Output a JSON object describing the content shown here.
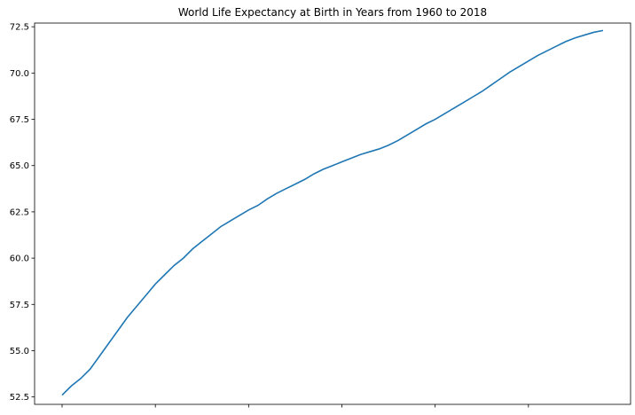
{
  "chart_data": {
    "type": "line",
    "title": "World Life Expectancy at Birth in Years from 1960 to 2018",
    "xlabel": "",
    "ylabel": "",
    "x_tick_labels_visible": false,
    "x_tick_count": 6,
    "yticks": [
      "52.5",
      "55.0",
      "57.5",
      "60.0",
      "62.5",
      "65.0",
      "67.5",
      "70.0",
      "72.5"
    ],
    "ylim": [
      52.1,
      72.7
    ],
    "xlim": [
      1957.05,
      2020.95
    ],
    "grid": false,
    "line_color": "#1f77b4",
    "x": [
      1960,
      1961,
      1962,
      1963,
      1964,
      1965,
      1966,
      1967,
      1968,
      1969,
      1970,
      1971,
      1972,
      1973,
      1974,
      1975,
      1976,
      1977,
      1978,
      1979,
      1980,
      1981,
      1982,
      1983,
      1984,
      1985,
      1986,
      1987,
      1988,
      1989,
      1990,
      1991,
      1992,
      1993,
      1994,
      1995,
      1996,
      1997,
      1998,
      1999,
      2000,
      2001,
      2002,
      2003,
      2004,
      2005,
      2006,
      2007,
      2008,
      2009,
      2010,
      2011,
      2012,
      2013,
      2014,
      2015,
      2016,
      2017,
      2018
    ],
    "y": [
      52.6,
      53.1,
      53.5,
      54.0,
      54.7,
      55.4,
      56.1,
      56.8,
      57.4,
      58.0,
      58.6,
      59.1,
      59.6,
      60.0,
      60.5,
      60.9,
      61.3,
      61.7,
      62.0,
      62.3,
      62.6,
      62.85,
      63.2,
      63.5,
      63.75,
      64.0,
      64.25,
      64.55,
      64.8,
      65.0,
      65.2,
      65.4,
      65.6,
      65.75,
      65.9,
      66.1,
      66.35,
      66.65,
      66.95,
      67.25,
      67.5,
      67.8,
      68.1,
      68.4,
      68.7,
      69.0,
      69.35,
      69.7,
      70.05,
      70.35,
      70.65,
      70.95,
      71.2,
      71.45,
      71.7,
      71.9,
      72.05,
      72.2,
      72.3
    ]
  }
}
